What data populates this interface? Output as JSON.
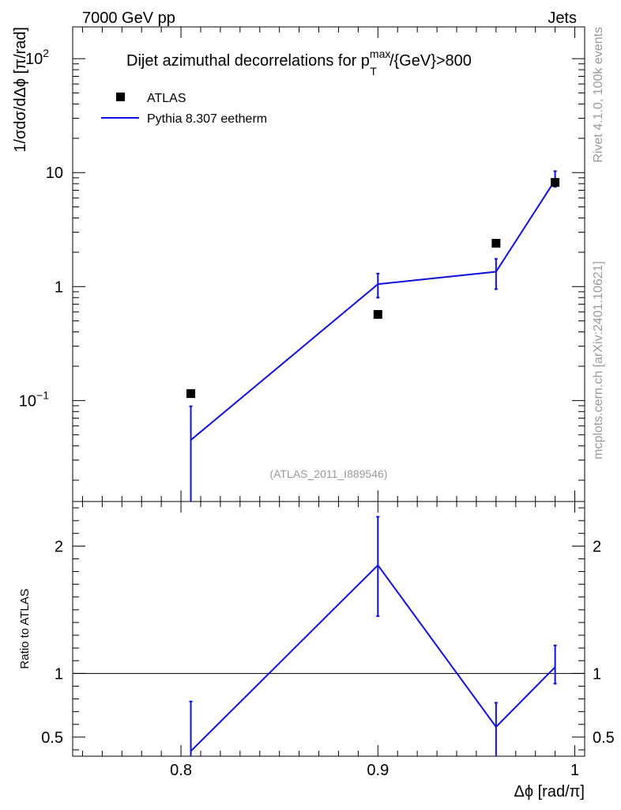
{
  "header": {
    "left": "7000 GeV pp",
    "right": "Jets"
  },
  "side_text": {
    "top": "Rivet 4.1.0,  100k events",
    "bottom": "mcplots.cern.ch [arXiv:2401.10621]"
  },
  "analysis_id": "(ATLAS_2011_I889546)",
  "colors": {
    "data": "#000000",
    "mc": "#1010e0",
    "reference_line": "#000000"
  },
  "chart_data": [
    {
      "type": "line",
      "title": "Dijet azimuthal decorrelations for p",
      "title_sup": "max",
      "title_sub": "T",
      "title_tail": "/{GeV}>800",
      "xlabel": "Δϕ [rad/π]",
      "ylabel": "1/σdσ/dΔϕ [π/rad]",
      "yscale": "log",
      "xlim": [
        0.745,
        1.005
      ],
      "ylim": [
        0.013,
        190
      ],
      "y_ticks": [
        {
          "value": 0.1,
          "label": "10",
          "exp": "−1"
        },
        {
          "value": 1,
          "label": "1",
          "exp": ""
        },
        {
          "value": 10,
          "label": "10",
          "exp": ""
        },
        {
          "value": 100,
          "label": "10",
          "exp": "2"
        }
      ],
      "legend_position": "top-left",
      "series": [
        {
          "name": "ATLAS",
          "style": "markers",
          "x": [
            0.805,
            0.9,
            0.96,
            0.99
          ],
          "y": [
            0.115,
            0.57,
            2.4,
            8.2
          ]
        },
        {
          "name": "Pythia 8.307 eetherm",
          "style": "line",
          "x": [
            0.805,
            0.9,
            0.96,
            0.99
          ],
          "y": [
            0.045,
            1.05,
            1.35,
            8.6
          ],
          "y_err_low": [
            0.045,
            0.25,
            0.4,
            1.1
          ],
          "y_err_high": [
            0.044,
            0.25,
            0.4,
            1.7
          ]
        }
      ]
    },
    {
      "type": "line",
      "xlabel": "Δϕ [rad/π]",
      "ylabel": "Ratio to ATLAS",
      "xlim": [
        0.745,
        1.005
      ],
      "ylim": [
        0.35,
        2.35
      ],
      "x_ticks": [
        {
          "value": 0.8,
          "label": "0.8"
        },
        {
          "value": 0.9,
          "label": "0.9"
        },
        {
          "value": 1.0,
          "label": "1"
        }
      ],
      "y_ticks": [
        {
          "value": 0.5,
          "label": "0.5"
        },
        {
          "value": 1,
          "label": "1"
        },
        {
          "value": 2,
          "label": "2"
        }
      ],
      "reference_value": 1,
      "series": [
        {
          "name": "Pythia 8.307 eetherm",
          "x": [
            0.805,
            0.9,
            0.96,
            0.99
          ],
          "y": [
            0.39,
            1.85,
            0.58,
            1.05
          ],
          "y_err_low": [
            0.39,
            0.4,
            0.23,
            0.13
          ],
          "y_err_high": [
            0.39,
            0.38,
            0.19,
            0.17
          ]
        }
      ]
    }
  ]
}
